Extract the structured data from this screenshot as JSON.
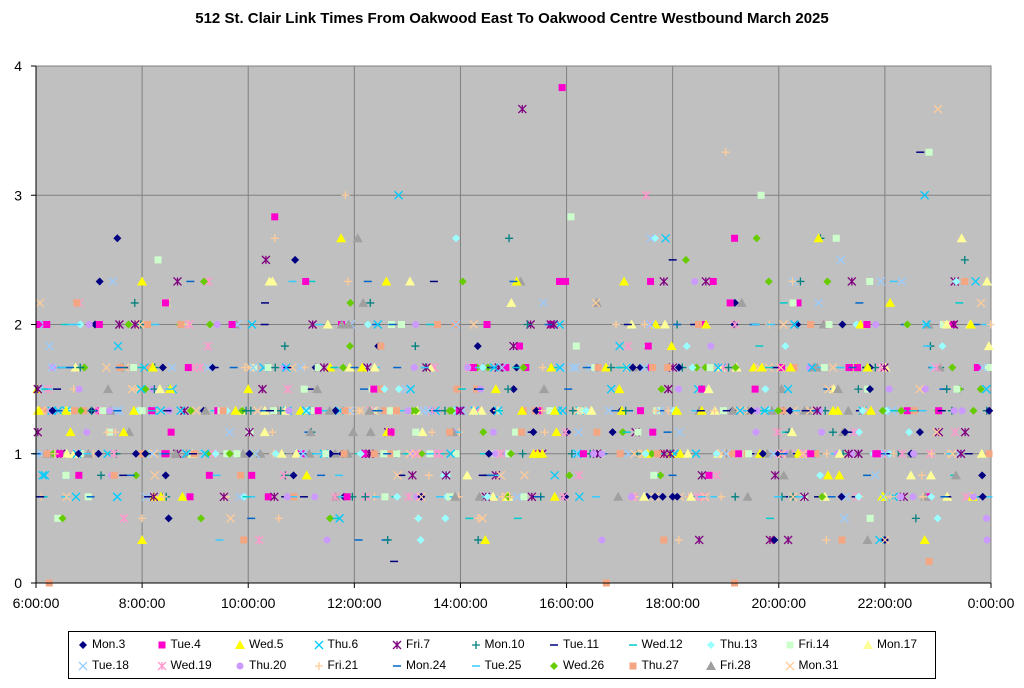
{
  "chart_data": {
    "type": "scatter",
    "title": "512 St. Clair Link Times From Oakwood East To Oakwood Centre Westbound March 2025",
    "xlabel": "",
    "ylabel": "",
    "xlim": [
      "6:00:00",
      "0:00:00"
    ],
    "x_ticks": [
      "6:00:00",
      "8:00:00",
      "10:00:00",
      "12:00:00",
      "14:00:00",
      "16:00:00",
      "18:00:00",
      "20:00:00",
      "22:00:00",
      "0:00:00"
    ],
    "ylim": [
      0,
      4
    ],
    "y_ticks": [
      "0",
      "1",
      "2",
      "3",
      "4"
    ],
    "y_levels_observed": [
      0.333,
      0.5,
      0.667,
      0.833,
      1,
      1.167,
      1.333,
      1.5,
      1.667,
      1.833,
      2,
      2.167,
      2.333,
      2.5,
      2.667
    ],
    "grid": true,
    "legend_position": "bottom",
    "series": [
      {
        "name": "Mon.3",
        "color": "#000080",
        "marker": "diamond",
        "points": [
          [
            "7:12",
            2.333
          ],
          [
            "7:32",
            2.667
          ],
          [
            "8:30",
            0.5
          ],
          [
            "10:53",
            2.5
          ],
          [
            "17:40",
            0.667
          ],
          [
            "18:00",
            0.667
          ],
          [
            "19:55",
            0.333
          ],
          [
            "21:12",
            2.0
          ],
          [
            "22:00",
            0.333
          ],
          [
            "23:58",
            1.333
          ],
          [
            "23:50",
            0.833
          ]
        ]
      },
      {
        "name": "Tue.4",
        "color": "#FF00CC",
        "marker": "square",
        "points": [
          [
            "10:30",
            2.833
          ],
          [
            "11:05",
            2.333
          ],
          [
            "12:22",
            1.5
          ],
          [
            "15:55",
            3.833
          ],
          [
            "15:52",
            2.333
          ],
          [
            "19:05",
            2.167
          ],
          [
            "19:10",
            2.667
          ],
          [
            "17:35",
            2.333
          ]
        ]
      },
      {
        "name": "Wed.5",
        "color": "#FFFF00",
        "marker": "triangle",
        "points": [
          [
            "8:00",
            0.333
          ],
          [
            "10:00",
            1.5
          ],
          [
            "11:45",
            2.667
          ],
          [
            "14:40",
            1.5
          ],
          [
            "17:05",
            2.333
          ],
          [
            "20:45",
            2.667
          ],
          [
            "22:45",
            0.333
          ]
        ]
      },
      {
        "name": "Thu.6",
        "color": "#00CCFF",
        "marker": "x",
        "points": [
          [
            "12:50",
            3.0
          ],
          [
            "17:52",
            2.667
          ],
          [
            "22:45",
            3.0
          ],
          [
            "17:00",
            1.833
          ],
          [
            "6:10",
            0.833
          ]
        ]
      },
      {
        "name": "Fri.7",
        "color": "#800080",
        "marker": "star",
        "points": [
          [
            "6:02",
            1.5
          ],
          [
            "7:52",
            2.0
          ],
          [
            "8:40",
            2.333
          ],
          [
            "10:20",
            2.5
          ],
          [
            "15:10",
            3.667
          ],
          [
            "15:00",
            1.833
          ],
          [
            "18:30",
            0.333
          ],
          [
            "19:50",
            0.333
          ],
          [
            "17:50",
            2.333
          ]
        ]
      },
      {
        "name": "Mon.10",
        "color": "#008080",
        "marker": "plus",
        "points": [
          [
            "14:20",
            0.333
          ],
          [
            "21:30",
            1.5
          ],
          [
            "22:35",
            0.5
          ],
          [
            "6:50",
            1.667
          ]
        ]
      },
      {
        "name": "Tue.11",
        "color": "#000080",
        "marker": "dash",
        "points": [
          [
            "22:40",
            3.333
          ],
          [
            "18:00",
            2.5
          ],
          [
            "13:30",
            2.333
          ],
          [
            "12:45",
            0.167
          ]
        ]
      },
      {
        "name": "Wed.12",
        "color": "#00CCCC",
        "marker": "dash",
        "points": [
          [
            "14:10",
            0.5
          ],
          [
            "19:50",
            0.5
          ],
          [
            "11:40",
            0.5
          ]
        ]
      },
      {
        "name": "Thu.13",
        "color": "#99FFFF",
        "marker": "diamond",
        "points": [
          [
            "13:55",
            2.667
          ],
          [
            "17:40",
            2.667
          ],
          [
            "13:15",
            0.333
          ],
          [
            "23:05",
            1.833
          ]
        ]
      },
      {
        "name": "Fri.14",
        "color": "#CCFFCC",
        "marker": "square",
        "points": [
          [
            "16:05",
            2.833
          ],
          [
            "19:40",
            3.0
          ],
          [
            "22:50",
            3.333
          ],
          [
            "21:05",
            2.667
          ]
        ]
      },
      {
        "name": "Mon.17",
        "color": "#FFFF99",
        "marker": "triangle",
        "points": [
          [
            "11:30",
            2.0
          ],
          [
            "20:15",
            1.167
          ],
          [
            "23:10",
            2.0
          ]
        ]
      },
      {
        "name": "Tue.18",
        "color": "#99CCFF",
        "marker": "x",
        "points": [
          [
            "17:35",
            2.667
          ],
          [
            "20:45",
            2.167
          ]
        ]
      },
      {
        "name": "Wed.19",
        "color": "#FF99CC",
        "marker": "star",
        "points": [
          [
            "17:30",
            3.0
          ],
          [
            "21:25",
            1.167
          ],
          [
            "9:15",
            2.333
          ]
        ]
      },
      {
        "name": "Thu.20",
        "color": "#CC99FF",
        "marker": "circle",
        "points": [
          [
            "9:25",
            2.0
          ],
          [
            "16:40",
            0.333
          ],
          [
            "23:55",
            0.5
          ]
        ]
      },
      {
        "name": "Fri.21",
        "color": "#FFCC99",
        "marker": "plus",
        "points": [
          [
            "10:30",
            2.667
          ],
          [
            "19:00",
            3.333
          ],
          [
            "14:20",
            0.5
          ],
          [
            "11:50",
            3.0
          ]
        ]
      },
      {
        "name": "Mon.24",
        "color": "#0066CC",
        "marker": "dash",
        "points": [
          [
            "18:05",
            2.0
          ],
          [
            "15:00",
            2.333
          ]
        ]
      },
      {
        "name": "Tue.25",
        "color": "#33CCFF",
        "marker": "dash",
        "points": [
          [
            "10:50",
            2.333
          ],
          [
            "22:10",
            2.333
          ]
        ]
      },
      {
        "name": "Wed.26",
        "color": "#66CC00",
        "marker": "diamond",
        "points": [
          [
            "9:10",
            2.333
          ],
          [
            "18:15",
            2.5
          ],
          [
            "19:35",
            2.667
          ],
          [
            "20:55",
            2.333
          ],
          [
            "11:55",
            1.833
          ],
          [
            "6:30",
            0.5
          ]
        ]
      },
      {
        "name": "Thu.27",
        "color": "#F4A582",
        "marker": "square",
        "points": [
          [
            "6:15",
            0.0
          ],
          [
            "16:45",
            0.0
          ],
          [
            "19:10",
            0.0
          ],
          [
            "22:50",
            0.167
          ],
          [
            "9:55",
            0.333
          ],
          [
            "17:50",
            0.333
          ],
          [
            "12:30",
            1.833
          ]
        ]
      },
      {
        "name": "Fri.28",
        "color": "#A0A0A0",
        "marker": "triangle",
        "points": [
          [
            "12:10",
            2.167
          ]
        ]
      },
      {
        "name": "Mon.31",
        "color": "#FFCC99",
        "marker": "x",
        "points": [
          [
            "23:00",
            3.667
          ],
          [
            "9:40",
            0.5
          ],
          [
            "22:00",
            0.333
          ]
        ]
      }
    ]
  }
}
